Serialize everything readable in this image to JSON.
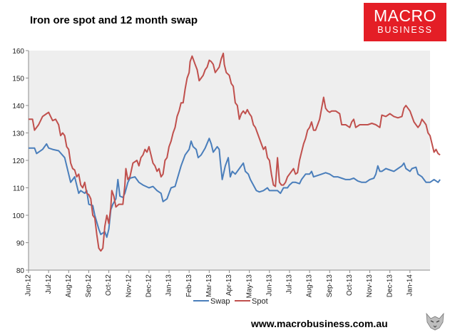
{
  "chart_data": {
    "type": "line",
    "title": "Iron ore spot and 12 month swap",
    "xlabel": "",
    "ylabel": "",
    "ylim": [
      80,
      160
    ],
    "yticks": [
      80,
      90,
      100,
      110,
      120,
      130,
      140,
      150,
      160
    ],
    "categories": [
      "Jun-12",
      "Jul-12",
      "Aug-12",
      "Sep-12",
      "Oct-12",
      "Nov-12",
      "Dec-12",
      "Jan-13",
      "Feb-13",
      "Mar-13",
      "Apr-13",
      "May-13",
      "Jun-13",
      "Jul-13",
      "Aug-13",
      "Sep-13",
      "Oct-13",
      "Nov-13",
      "Dec-13",
      "Jan-14"
    ],
    "x_range": [
      0,
      20
    ],
    "grid": false,
    "legend_position": "bottom",
    "series": [
      {
        "name": "Swap",
        "color": "#4a7ebb",
        "points": [
          [
            0.0,
            124.5
          ],
          [
            0.3,
            124.5
          ],
          [
            0.4,
            122.5
          ],
          [
            0.7,
            124
          ],
          [
            0.9,
            126
          ],
          [
            1.0,
            124.5
          ],
          [
            1.2,
            124
          ],
          [
            1.5,
            123.5
          ],
          [
            1.8,
            121
          ],
          [
            2.0,
            115
          ],
          [
            2.1,
            112
          ],
          [
            2.3,
            114
          ],
          [
            2.5,
            108
          ],
          [
            2.6,
            109
          ],
          [
            2.8,
            108
          ],
          [
            2.9,
            109
          ],
          [
            3.0,
            104
          ],
          [
            3.2,
            103.5
          ],
          [
            3.3,
            100
          ],
          [
            3.5,
            95
          ],
          [
            3.6,
            93
          ],
          [
            3.8,
            94
          ],
          [
            3.9,
            92
          ],
          [
            4.0,
            95
          ],
          [
            4.1,
            102
          ],
          [
            4.2,
            104
          ],
          [
            4.35,
            106
          ],
          [
            4.45,
            113
          ],
          [
            4.55,
            107
          ],
          [
            4.7,
            106.5
          ],
          [
            4.8,
            108
          ],
          [
            4.95,
            112
          ],
          [
            5.05,
            113.5
          ],
          [
            5.3,
            114
          ],
          [
            5.5,
            112
          ],
          [
            5.7,
            111
          ],
          [
            6.0,
            110
          ],
          [
            6.2,
            110.5
          ],
          [
            6.4,
            109
          ],
          [
            6.6,
            108
          ],
          [
            6.7,
            105
          ],
          [
            6.9,
            106
          ],
          [
            7.0,
            108
          ],
          [
            7.1,
            110
          ],
          [
            7.3,
            110.5
          ],
          [
            7.4,
            113
          ],
          [
            7.6,
            118
          ],
          [
            7.8,
            122
          ],
          [
            8.0,
            124
          ],
          [
            8.1,
            127
          ],
          [
            8.2,
            125
          ],
          [
            8.35,
            124
          ],
          [
            8.45,
            121
          ],
          [
            8.6,
            122
          ],
          [
            8.8,
            124.5
          ],
          [
            9.0,
            128
          ],
          [
            9.1,
            126
          ],
          [
            9.2,
            123
          ],
          [
            9.4,
            125
          ],
          [
            9.5,
            124
          ],
          [
            9.55,
            120
          ],
          [
            9.65,
            113
          ],
          [
            9.8,
            118
          ],
          [
            9.95,
            121
          ],
          [
            10.05,
            114
          ],
          [
            10.15,
            116
          ],
          [
            10.3,
            115
          ],
          [
            10.5,
            117
          ],
          [
            10.7,
            119
          ],
          [
            10.8,
            116
          ],
          [
            10.95,
            115
          ],
          [
            11.05,
            113
          ],
          [
            11.2,
            111
          ],
          [
            11.35,
            109
          ],
          [
            11.5,
            108.5
          ],
          [
            11.7,
            109
          ],
          [
            11.9,
            110
          ],
          [
            12.0,
            109
          ],
          [
            12.2,
            109
          ],
          [
            12.4,
            109
          ],
          [
            12.55,
            108
          ],
          [
            12.7,
            110
          ],
          [
            12.9,
            110
          ],
          [
            13.0,
            111
          ],
          [
            13.15,
            112
          ],
          [
            13.3,
            112
          ],
          [
            13.5,
            111.5
          ],
          [
            13.6,
            113
          ],
          [
            13.8,
            115
          ],
          [
            14.0,
            115
          ],
          [
            14.1,
            116
          ],
          [
            14.2,
            114
          ],
          [
            14.4,
            114.5
          ],
          [
            14.6,
            115
          ],
          [
            14.8,
            115.5
          ],
          [
            15.0,
            115
          ],
          [
            15.2,
            114
          ],
          [
            15.4,
            114
          ],
          [
            15.6,
            113.5
          ],
          [
            15.8,
            113
          ],
          [
            16.0,
            113
          ],
          [
            16.2,
            113.5
          ],
          [
            16.4,
            112.5
          ],
          [
            16.6,
            112
          ],
          [
            16.8,
            112
          ],
          [
            17.0,
            113
          ],
          [
            17.2,
            113.5
          ],
          [
            17.3,
            115
          ],
          [
            17.4,
            118
          ],
          [
            17.5,
            116
          ],
          [
            17.6,
            116
          ],
          [
            17.8,
            117
          ],
          [
            18.0,
            116.5
          ],
          [
            18.2,
            116
          ],
          [
            18.4,
            117
          ],
          [
            18.6,
            118
          ],
          [
            18.7,
            119
          ],
          [
            18.8,
            117
          ],
          [
            19.0,
            116
          ],
          [
            19.1,
            117
          ],
          [
            19.3,
            117.5
          ],
          [
            19.4,
            115
          ],
          [
            19.6,
            114
          ],
          [
            19.8,
            112
          ],
          [
            20.0,
            112
          ],
          [
            20.2,
            113
          ],
          [
            20.4,
            112
          ],
          [
            20.5,
            113
          ]
        ]
      },
      {
        "name": "Spot",
        "color": "#c0504d",
        "points": [
          [
            0.0,
            135
          ],
          [
            0.2,
            135
          ],
          [
            0.3,
            131
          ],
          [
            0.5,
            133
          ],
          [
            0.7,
            136
          ],
          [
            0.9,
            137
          ],
          [
            1.0,
            137.5
          ],
          [
            1.1,
            136
          ],
          [
            1.2,
            134.5
          ],
          [
            1.35,
            135
          ],
          [
            1.5,
            133
          ],
          [
            1.6,
            129
          ],
          [
            1.7,
            130
          ],
          [
            1.8,
            129
          ],
          [
            1.9,
            125
          ],
          [
            2.0,
            124
          ],
          [
            2.1,
            119
          ],
          [
            2.2,
            117
          ],
          [
            2.3,
            116.5
          ],
          [
            2.4,
            114
          ],
          [
            2.5,
            115
          ],
          [
            2.6,
            111
          ],
          [
            2.7,
            110
          ],
          [
            2.8,
            112
          ],
          [
            2.9,
            108
          ],
          [
            3.0,
            107.5
          ],
          [
            3.1,
            106
          ],
          [
            3.2,
            100
          ],
          [
            3.3,
            99
          ],
          [
            3.4,
            93
          ],
          [
            3.5,
            88
          ],
          [
            3.6,
            87
          ],
          [
            3.7,
            88
          ],
          [
            3.8,
            96
          ],
          [
            3.9,
            100
          ],
          [
            4.0,
            97
          ],
          [
            4.1,
            103
          ],
          [
            4.15,
            109
          ],
          [
            4.25,
            107
          ],
          [
            4.35,
            103
          ],
          [
            4.5,
            104
          ],
          [
            4.7,
            104
          ],
          [
            4.8,
            111
          ],
          [
            4.85,
            117
          ],
          [
            4.95,
            113
          ],
          [
            5.05,
            114
          ],
          [
            5.2,
            119
          ],
          [
            5.4,
            120
          ],
          [
            5.5,
            118
          ],
          [
            5.6,
            121
          ],
          [
            5.7,
            122
          ],
          [
            5.8,
            124
          ],
          [
            5.9,
            123
          ],
          [
            6.0,
            125
          ],
          [
            6.1,
            122
          ],
          [
            6.2,
            119
          ],
          [
            6.3,
            118
          ],
          [
            6.4,
            116
          ],
          [
            6.5,
            117
          ],
          [
            6.6,
            114
          ],
          [
            6.7,
            115
          ],
          [
            6.8,
            120
          ],
          [
            6.9,
            121
          ],
          [
            7.0,
            125
          ],
          [
            7.1,
            127
          ],
          [
            7.2,
            130
          ],
          [
            7.3,
            132
          ],
          [
            7.4,
            136
          ],
          [
            7.5,
            138
          ],
          [
            7.6,
            141
          ],
          [
            7.7,
            141
          ],
          [
            7.8,
            146
          ],
          [
            7.9,
            150
          ],
          [
            8.0,
            152
          ],
          [
            8.05,
            156
          ],
          [
            8.15,
            158
          ],
          [
            8.3,
            155
          ],
          [
            8.4,
            153
          ],
          [
            8.5,
            149
          ],
          [
            8.6,
            150
          ],
          [
            8.7,
            151
          ],
          [
            8.8,
            153
          ],
          [
            8.9,
            154
          ],
          [
            9.0,
            156.5
          ],
          [
            9.1,
            156
          ],
          [
            9.2,
            155
          ],
          [
            9.3,
            152
          ],
          [
            9.4,
            153
          ],
          [
            9.5,
            154
          ],
          [
            9.6,
            157
          ],
          [
            9.7,
            159
          ],
          [
            9.75,
            155
          ],
          [
            9.85,
            152
          ],
          [
            10.0,
            151
          ],
          [
            10.1,
            148
          ],
          [
            10.2,
            147
          ],
          [
            10.3,
            141
          ],
          [
            10.4,
            140
          ],
          [
            10.5,
            135
          ],
          [
            10.6,
            137
          ],
          [
            10.7,
            138
          ],
          [
            10.8,
            137
          ],
          [
            10.9,
            138.5
          ],
          [
            11.0,
            137
          ],
          [
            11.1,
            136
          ],
          [
            11.2,
            133
          ],
          [
            11.3,
            132
          ],
          [
            11.4,
            130
          ],
          [
            11.5,
            128
          ],
          [
            11.6,
            126
          ],
          [
            11.7,
            124
          ],
          [
            11.8,
            125
          ],
          [
            11.9,
            121
          ],
          [
            12.0,
            120
          ],
          [
            12.1,
            115
          ],
          [
            12.2,
            111
          ],
          [
            12.3,
            110.5
          ],
          [
            12.4,
            121
          ],
          [
            12.5,
            112
          ],
          [
            12.6,
            111
          ],
          [
            12.7,
            111
          ],
          [
            12.8,
            112
          ],
          [
            12.9,
            114
          ],
          [
            13.0,
            115
          ],
          [
            13.1,
            116
          ],
          [
            13.2,
            117
          ],
          [
            13.3,
            115
          ],
          [
            13.4,
            115.5
          ],
          [
            13.5,
            120
          ],
          [
            13.6,
            123
          ],
          [
            13.7,
            126
          ],
          [
            13.8,
            128
          ],
          [
            13.9,
            131
          ],
          [
            14.0,
            132
          ],
          [
            14.1,
            134
          ],
          [
            14.2,
            131
          ],
          [
            14.3,
            131
          ],
          [
            14.4,
            133
          ],
          [
            14.5,
            135
          ],
          [
            14.6,
            139
          ],
          [
            14.7,
            143
          ],
          [
            14.8,
            139
          ],
          [
            14.9,
            138
          ],
          [
            15.0,
            137.5
          ],
          [
            15.1,
            138
          ],
          [
            15.3,
            138
          ],
          [
            15.5,
            137
          ],
          [
            15.6,
            133
          ],
          [
            15.8,
            133
          ],
          [
            16.0,
            132
          ],
          [
            16.1,
            134
          ],
          [
            16.2,
            135
          ],
          [
            16.3,
            132
          ],
          [
            16.5,
            133
          ],
          [
            16.7,
            133
          ],
          [
            16.9,
            133
          ],
          [
            17.1,
            133.5
          ],
          [
            17.3,
            133
          ],
          [
            17.5,
            132
          ],
          [
            17.6,
            136.5
          ],
          [
            17.8,
            136
          ],
          [
            18.0,
            137
          ],
          [
            18.2,
            136
          ],
          [
            18.4,
            135.5
          ],
          [
            18.6,
            136
          ],
          [
            18.7,
            139
          ],
          [
            18.8,
            140
          ],
          [
            18.9,
            139
          ],
          [
            19.0,
            138
          ],
          [
            19.1,
            136
          ],
          [
            19.2,
            134
          ],
          [
            19.3,
            133
          ],
          [
            19.4,
            132
          ],
          [
            19.5,
            133
          ],
          [
            19.6,
            135
          ],
          [
            19.7,
            134
          ],
          [
            19.8,
            133
          ],
          [
            19.9,
            130
          ],
          [
            20.0,
            129
          ],
          [
            20.1,
            126
          ],
          [
            20.2,
            123
          ],
          [
            20.3,
            124
          ],
          [
            20.4,
            122.5
          ],
          [
            20.5,
            122
          ]
        ]
      }
    ]
  },
  "logo": {
    "line1": "MACRO",
    "line2": "BUSINESS",
    "color": "#e41e26"
  },
  "footer": {
    "url": "www.macrobusiness.com.au"
  },
  "style": {
    "plot_background": "#eeeeee",
    "axis_color": "#8c8c8c"
  }
}
